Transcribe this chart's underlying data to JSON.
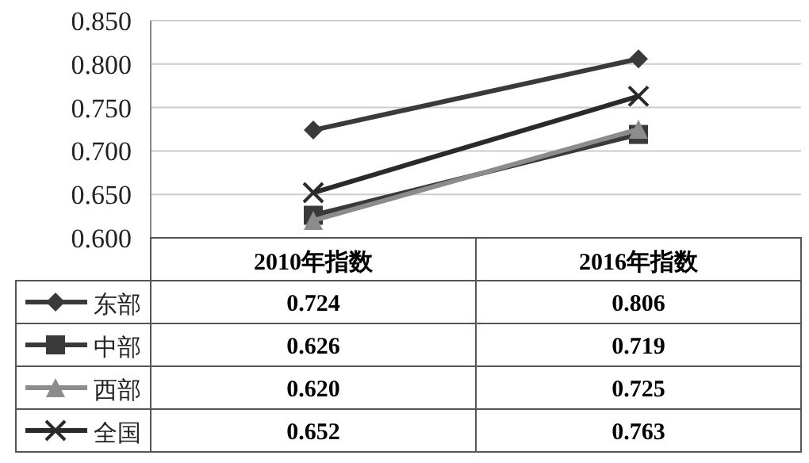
{
  "chart_data": {
    "type": "line",
    "categories": [
      "2010年指数",
      "2016年指数"
    ],
    "series": [
      {
        "name": "东部",
        "color": "#3a3a3a",
        "marker": "diamond",
        "values": [
          0.724,
          0.806
        ],
        "value_labels": [
          "0.724",
          "0.806"
        ]
      },
      {
        "name": "中部",
        "color": "#3a3a3a",
        "marker": "square",
        "values": [
          0.626,
          0.719
        ],
        "value_labels": [
          "0.626",
          "0.719"
        ]
      },
      {
        "name": "西部",
        "color": "#8c8c8c",
        "marker": "triangle",
        "values": [
          0.62,
          0.725
        ],
        "value_labels": [
          "0.620",
          "0.725"
        ]
      },
      {
        "name": "全国",
        "color": "#2a2a2a",
        "marker": "cross",
        "values": [
          0.652,
          0.763
        ],
        "value_labels": [
          "0.652",
          "0.763"
        ]
      }
    ],
    "ylim": [
      0.6,
      0.85
    ],
    "yticks": [
      {
        "value": 0.6,
        "label": "0.600"
      },
      {
        "value": 0.65,
        "label": "0.650"
      },
      {
        "value": 0.7,
        "label": "0.700"
      },
      {
        "value": 0.75,
        "label": "0.750"
      },
      {
        "value": 0.8,
        "label": "0.800"
      },
      {
        "value": 0.85,
        "label": "0.850"
      }
    ],
    "grid": "y",
    "legend": "bottom",
    "line_style": "solid"
  }
}
